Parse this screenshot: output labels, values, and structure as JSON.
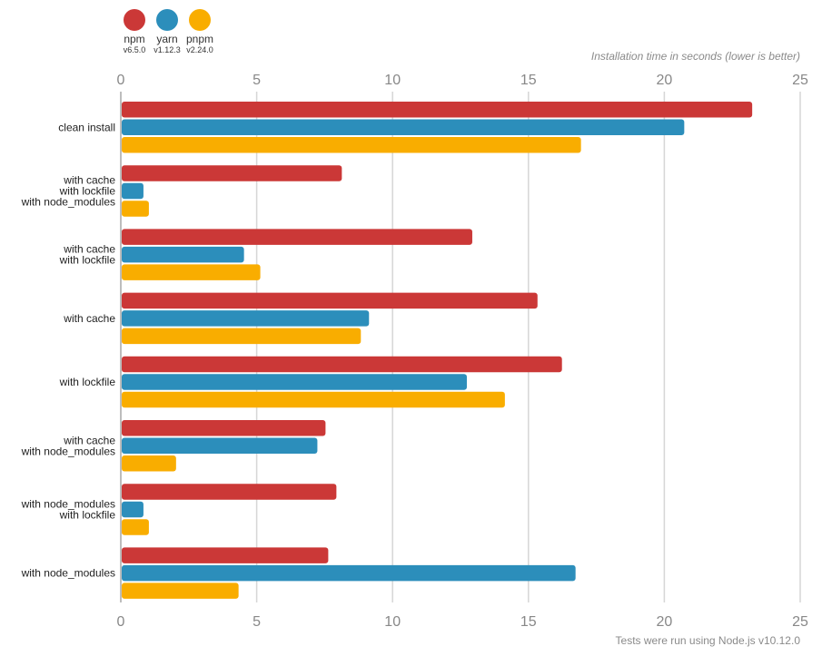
{
  "chart_data": {
    "type": "bar",
    "orientation": "horizontal",
    "xlabel": "Installation time in seconds (lower is better)",
    "footnote": "Tests were run using Node.js v10.12.0",
    "xlim": [
      0,
      25
    ],
    "xticks": [
      0,
      5,
      10,
      15,
      20,
      25
    ],
    "grid": true,
    "legend_position": "top-left",
    "categories": [
      [
        "clean install"
      ],
      [
        "with cache",
        "with lockfile",
        "with node_modules"
      ],
      [
        "with cache",
        "with lockfile"
      ],
      [
        "with cache"
      ],
      [
        "with lockfile"
      ],
      [
        "with cache",
        "with node_modules"
      ],
      [
        "with node_modules",
        "with lockfile"
      ],
      [
        "with node_modules"
      ]
    ],
    "series": [
      {
        "name": "npm",
        "version": "v6.5.0",
        "color": "#cb3837",
        "values": [
          23.2,
          8.1,
          12.9,
          15.3,
          16.2,
          7.5,
          7.9,
          7.6
        ]
      },
      {
        "name": "yarn",
        "version": "v1.12.3",
        "color": "#2c8ebb",
        "values": [
          20.7,
          0.8,
          4.5,
          9.1,
          12.7,
          7.2,
          0.8,
          16.7
        ]
      },
      {
        "name": "pnpm",
        "version": "v2.24.0",
        "color": "#f9ad00",
        "values": [
          16.9,
          1.0,
          5.1,
          8.8,
          14.1,
          2.0,
          1.0,
          4.3
        ]
      }
    ]
  }
}
